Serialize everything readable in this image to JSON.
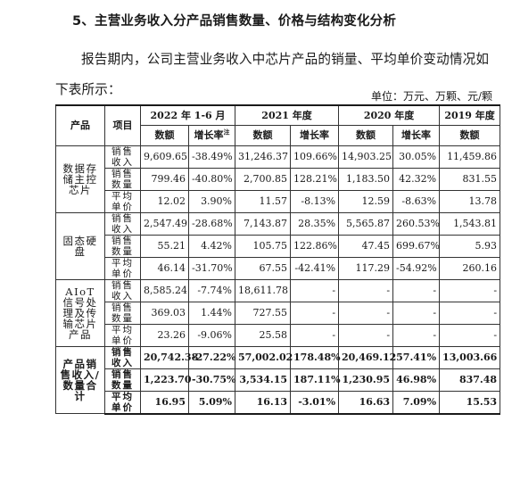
{
  "section_title": "5、主营业务收入分产品销售数量、价格与结构变化分析",
  "intro_text": "报告期内，公司主营业务收入中芯片产品的销量、平均单价变动情况如下表所示：",
  "unit_note": "单位：万元、万颗、元/颗",
  "table": {
    "header": {
      "product": "产品",
      "item": "项目",
      "periods": [
        "2022 年 1-6 月",
        "2021 年度",
        "2020 年度",
        "2019 年度"
      ],
      "amount": "数额",
      "growth": "增长率",
      "growth_note_mark": "注"
    },
    "items": [
      "销售收入",
      "销售数量",
      "平均单价"
    ],
    "products": [
      {
        "name": "数据存储主控芯片",
        "rows": [
          [
            "9,609.65",
            "-38.49%",
            "31,246.37",
            "109.66%",
            "14,903.25",
            "30.05%",
            "11,459.86"
          ],
          [
            "799.46",
            "-40.80%",
            "2,700.85",
            "128.21%",
            "1,183.50",
            "42.32%",
            "831.55"
          ],
          [
            "12.02",
            "3.90%",
            "11.57",
            "-8.13%",
            "12.59",
            "-8.63%",
            "13.78"
          ]
        ]
      },
      {
        "name": "固态硬盘",
        "rows": [
          [
            "2,547.49",
            "-28.68%",
            "7,143.87",
            "28.35%",
            "5,565.87",
            "260.53%",
            "1,543.81"
          ],
          [
            "55.21",
            "4.42%",
            "105.75",
            "122.86%",
            "47.45",
            "699.67%",
            "5.93"
          ],
          [
            "46.14",
            "-31.70%",
            "67.55",
            "-42.41%",
            "117.29",
            "-54.92%",
            "260.16"
          ]
        ]
      },
      {
        "name": "AIoT 信号处理及传输芯片产品",
        "rows": [
          [
            "8,585.24",
            "-7.74%",
            "18,611.78",
            "-",
            "-",
            "-",
            "-"
          ],
          [
            "369.03",
            "1.44%",
            "727.55",
            "-",
            "-",
            "-",
            "-"
          ],
          [
            "23.26",
            "-9.06%",
            "25.58",
            "-",
            "-",
            "-",
            "-"
          ]
        ]
      },
      {
        "name": "产品销售收入/数量合计",
        "total": true,
        "rows": [
          [
            "20,742.38",
            "-27.22%",
            "57,002.02",
            "178.48%",
            "20,469.12",
            "57.41%",
            "13,003.66"
          ],
          [
            "1,223.70",
            "-30.75%",
            "3,534.15",
            "187.11%",
            "1,230.95",
            "46.98%",
            "837.48"
          ],
          [
            "16.95",
            "5.09%",
            "16.13",
            "-3.01%",
            "16.63",
            "7.09%",
            "15.53"
          ]
        ]
      }
    ]
  }
}
